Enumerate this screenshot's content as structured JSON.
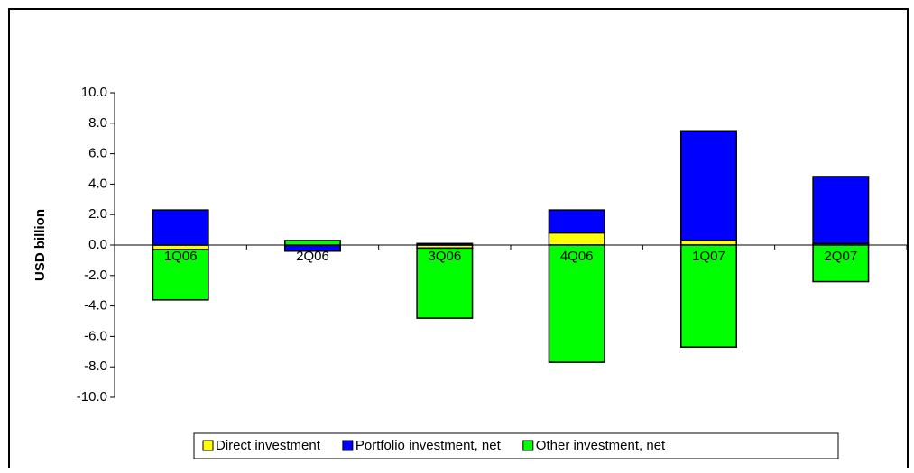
{
  "chart_data": {
    "type": "stacked-bar",
    "y_label": "USD billion",
    "categories": [
      "1Q06",
      "2Q06",
      "3Q06",
      "4Q06",
      "1Q07",
      "2Q07"
    ],
    "series": [
      {
        "name": "Direct investment",
        "color": "#ffff00",
        "values": [
          -0.3,
          0.0,
          -0.2,
          0.8,
          0.3,
          0.1
        ]
      },
      {
        "name": "Portfolio investment, net",
        "color": "#0000ff",
        "values": [
          2.3,
          -0.4,
          0.1,
          1.5,
          7.2,
          4.4
        ]
      },
      {
        "name": "Other investment, net",
        "color": "#00ff00",
        "values": [
          -3.3,
          0.3,
          -4.6,
          -7.7,
          -6.7,
          -2.4
        ]
      }
    ],
    "ylim": [
      -10,
      10
    ],
    "yticks": [
      {
        "value": -10,
        "label": "-10.0"
      },
      {
        "value": -8,
        "label": "-8.0"
      },
      {
        "value": -6,
        "label": "-6.0"
      },
      {
        "value": -4,
        "label": "-4.0"
      },
      {
        "value": -2,
        "label": "-2.0"
      },
      {
        "value": 0,
        "label": "0.0"
      },
      {
        "value": 2,
        "label": "2.0"
      },
      {
        "value": 4,
        "label": "4.0"
      },
      {
        "value": 6,
        "label": "6.0"
      },
      {
        "value": 8,
        "label": "8.0"
      },
      {
        "value": 10,
        "label": "10.0"
      }
    ],
    "grid": false,
    "legend": "bottom"
  }
}
